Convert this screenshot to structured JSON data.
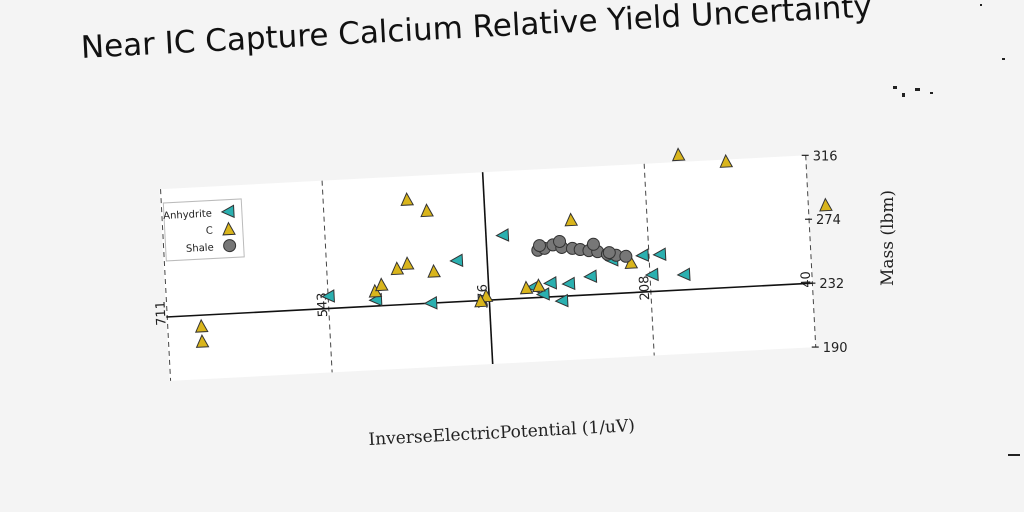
{
  "chart_data": {
    "type": "scatter",
    "title": "Near IC Capture Calcium Relative Yield Uncertainty",
    "xlabel": "InverseElectricPotential (1/uV)",
    "ylabel": "Mass (lbm)",
    "x_ticks": [
      711,
      543,
      376,
      208,
      40
    ],
    "y_ticks": [
      190,
      232,
      274,
      316
    ],
    "xlim": [
      -712,
      -40
    ],
    "ylim": [
      190,
      316
    ],
    "grid": "vertical dashed",
    "legend_position": "top-left",
    "series": [
      {
        "name": "Anhydrite",
        "marker": "triangle-left",
        "color": "#2bb0b0",
        "points": [
          [
            -543,
            240
          ],
          [
            -494,
            236
          ],
          [
            -437,
            232
          ],
          [
            -359,
            274
          ],
          [
            -330,
            239
          ],
          [
            -320,
            234
          ],
          [
            -312,
            241
          ],
          [
            -301,
            229
          ],
          [
            -293,
            240
          ],
          [
            -270,
            244
          ],
          [
            -247,
            254
          ],
          [
            -215,
            256
          ],
          [
            -197,
            256
          ],
          [
            -173,
            242
          ],
          [
            -206,
            243
          ],
          [
            -408,
            259
          ]
        ]
      },
      {
        "name": "C",
        "marker": "triangle-up",
        "color": "#d9b51c",
        "points": [
          [
            -676,
            215
          ],
          [
            -676,
            225
          ],
          [
            -494,
            242
          ],
          [
            -487,
            246
          ],
          [
            -470,
            256
          ],
          [
            -459,
            259
          ],
          [
            -456,
            301
          ],
          [
            -436,
            293
          ],
          [
            -432,
            253
          ],
          [
            -337,
            239
          ],
          [
            -287,
            282
          ],
          [
            -172,
            321
          ],
          [
            -123,
            315
          ],
          [
            -22,
            283
          ],
          [
            -379,
            235
          ],
          [
            -385,
            232
          ],
          [
            -324,
            240
          ],
          [
            -227,
            252
          ]
        ]
      },
      {
        "name": "Shale",
        "marker": "circle",
        "color": "#777777",
        "points": [
          [
            -323,
            263
          ],
          [
            -316,
            264
          ],
          [
            -307,
            266
          ],
          [
            -298,
            264
          ],
          [
            -287,
            263
          ],
          [
            -279,
            262
          ],
          [
            -270,
            261
          ],
          [
            -261,
            260
          ],
          [
            -251,
            258
          ],
          [
            -242,
            257
          ],
          [
            -232,
            256
          ],
          [
            -321,
            266
          ],
          [
            -300,
            268
          ],
          [
            -265,
            265
          ],
          [
            -249,
            259
          ]
        ]
      }
    ]
  }
}
